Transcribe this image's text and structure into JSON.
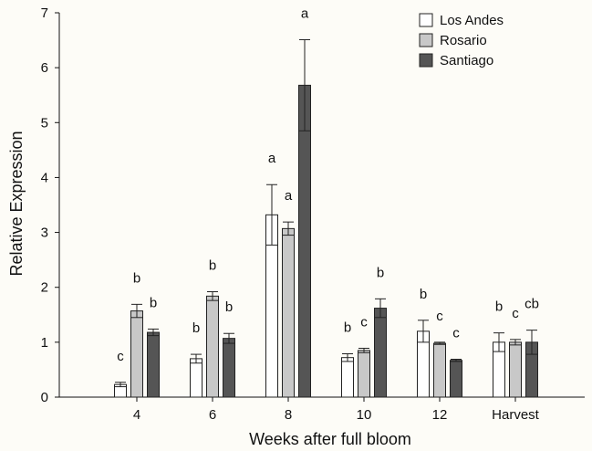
{
  "chart_data": {
    "type": "bar",
    "xlabel": "Weeks after full bloom",
    "ylabel": "Relative Expression",
    "ylim": [
      0,
      7
    ],
    "yticks": [
      "0",
      "1",
      "2",
      "3",
      "4",
      "5",
      "6",
      "7"
    ],
    "categories": [
      "4",
      "6",
      "8",
      "10",
      "12",
      "Harvest"
    ],
    "legend_position": "top-right",
    "series": [
      {
        "name": "Los Andes",
        "color": "#ffffff",
        "values": [
          0.23,
          0.7,
          3.32,
          0.72,
          1.2,
          1.0
        ],
        "errors": [
          0.04,
          0.08,
          0.55,
          0.07,
          0.2,
          0.17
        ],
        "letters": [
          "c",
          "b",
          "a",
          "b",
          "b",
          "b"
        ]
      },
      {
        "name": "Rosario",
        "color": "#c8c8c8",
        "values": [
          1.57,
          1.84,
          3.07,
          0.85,
          0.98,
          1.0
        ],
        "errors": [
          0.12,
          0.08,
          0.12,
          0.04,
          0.02,
          0.05
        ],
        "letters": [
          "b",
          "b",
          "a",
          "c",
          "c",
          "c"
        ]
      },
      {
        "name": "Santiago",
        "color": "#555555",
        "values": [
          1.18,
          1.07,
          5.68,
          1.62,
          0.67,
          1.0
        ],
        "errors": [
          0.06,
          0.09,
          0.83,
          0.17,
          0.02,
          0.22
        ],
        "letters": [
          "b",
          "b",
          "a",
          "b",
          "c",
          "cb"
        ]
      }
    ]
  }
}
